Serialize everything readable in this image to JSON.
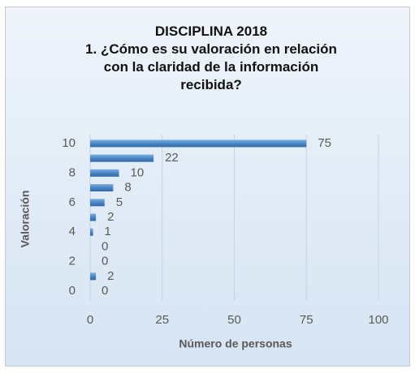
{
  "chart_data": {
    "type": "hbar",
    "title": "DISCIPLINA 2018",
    "subtitle": "1. ¿Cómo es su valoración en relación con la claridad de la información recibida?",
    "x_label": "Número de personas",
    "y_label": "Valoración",
    "y": [
      10,
      9,
      8,
      7,
      6,
      5,
      4,
      3,
      2,
      1,
      0
    ],
    "values": [
      75,
      22,
      10,
      8,
      5,
      2,
      1,
      0,
      0,
      2,
      0
    ],
    "color": "#4a86c5",
    "xlim": [
      0,
      100
    ],
    "xticks": [
      0,
      25,
      50,
      75,
      100
    ],
    "ylim": [
      -0.6,
      10.6
    ],
    "yticks": [
      0,
      2,
      4,
      6,
      8,
      10
    ],
    "grid": true
  }
}
